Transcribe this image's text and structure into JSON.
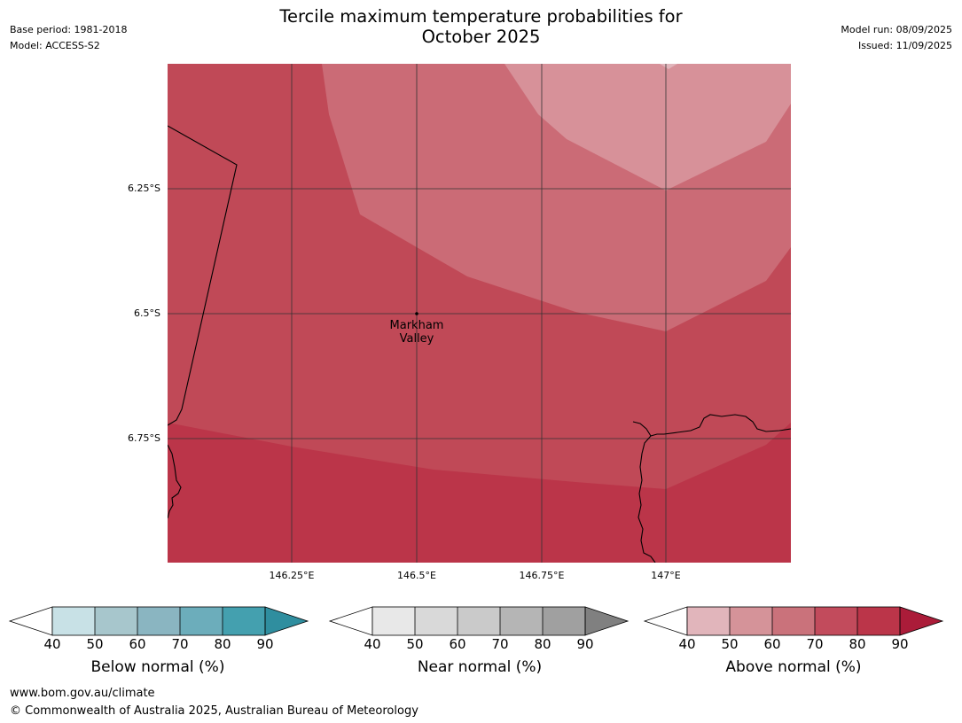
{
  "header": {
    "title_line1": "Tercile maximum temperature probabilities for",
    "title_line2": "October 2025",
    "base_period": "Base period: 1981-2018",
    "model": "Model: ACCESS-S2",
    "model_run": "Model run: 08/09/2025",
    "issued": "Issued: 11/09/2025"
  },
  "map": {
    "lat_labels": [
      "6.25°S",
      "6.5°S",
      "6.75°S"
    ],
    "lon_labels": [
      "146.25°E",
      "146.5°E",
      "146.75°E",
      "147°E"
    ],
    "place": {
      "line1": "Markham",
      "line2": "Valley"
    },
    "colors": {
      "p80_90": "#bb3549",
      "p70_80": "#c04957",
      "p60_70": "#cb6b76",
      "p50_60": "#d79199",
      "border": "#000000",
      "grid": "#333333"
    }
  },
  "legends": [
    {
      "title": "Below normal (%)",
      "ticks": [
        "40",
        "50",
        "60",
        "70",
        "80",
        "90"
      ],
      "colors": [
        "#ffffff",
        "#c8e1e6",
        "#a7c6cc",
        "#8ab5c1",
        "#6cadbb",
        "#44a0af",
        "#2f8e9f"
      ]
    },
    {
      "title": "Near normal (%)",
      "ticks": [
        "40",
        "50",
        "60",
        "70",
        "80",
        "90"
      ],
      "colors": [
        "#ffffff",
        "#e8e8e8",
        "#d9d9d9",
        "#cacaca",
        "#b5b5b5",
        "#a0a0a0",
        "#808080"
      ]
    },
    {
      "title": "Above normal (%)",
      "ticks": [
        "40",
        "50",
        "60",
        "70",
        "80",
        "90"
      ],
      "colors": [
        "#ffffff",
        "#e1b5bb",
        "#d59399",
        "#ca727b",
        "#c24b5c",
        "#bb3549",
        "#ab1c39"
      ]
    }
  ],
  "footer": {
    "url": "www.bom.gov.au/climate",
    "copyright": "© Commonwealth of Australia 2025, Australian Bureau of Meteorology"
  }
}
